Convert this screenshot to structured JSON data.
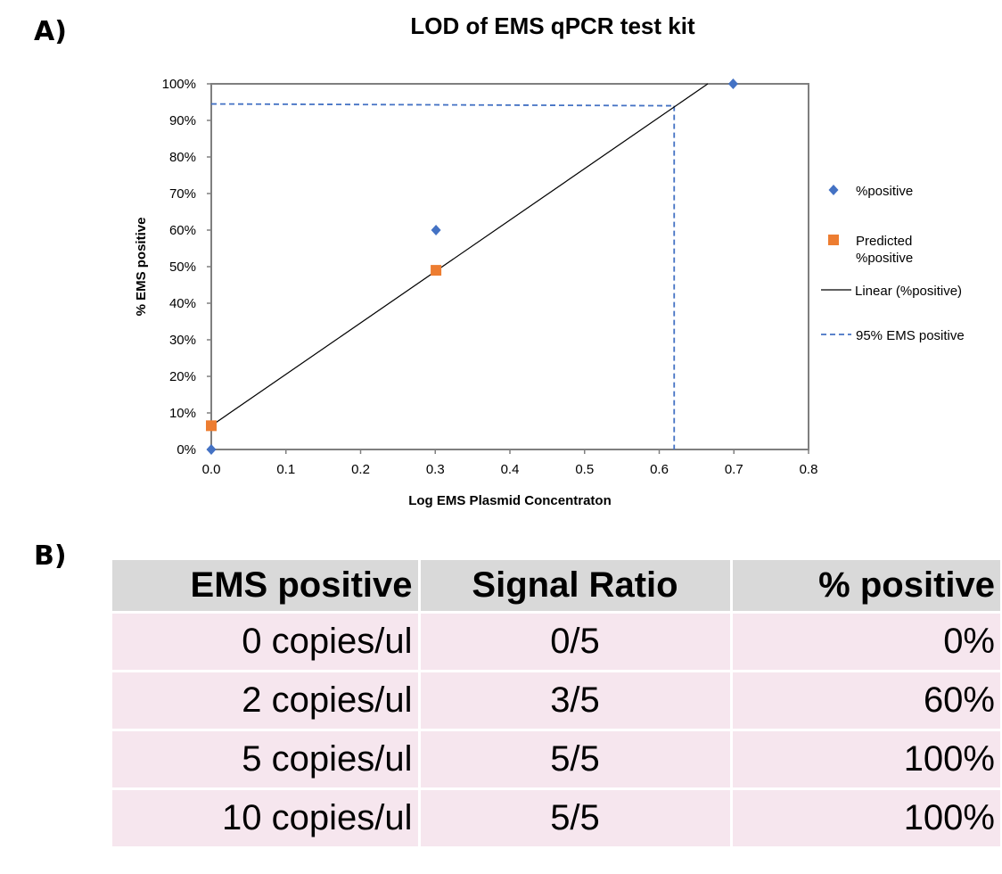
{
  "panels": {
    "a_label": "A)",
    "b_label": "B)"
  },
  "colors": {
    "positive": "#4472c4",
    "predicted": "#ed7d31",
    "linear": "#000000",
    "threshold": "#4472c4",
    "table_header_bg": "#d9d9d9",
    "table_row_bg": "#f6e6ee"
  },
  "chart_data": {
    "type": "scatter",
    "title": "LOD of EMS qPCR test kit",
    "xlabel": "Log EMS Plasmid Concentraton",
    "ylabel": "% EMS positive",
    "xlim": [
      0,
      0.8
    ],
    "ylim": [
      0,
      1
    ],
    "x_ticks": [
      "0.0",
      "0.1",
      "0.2",
      "0.3",
      "0.4",
      "0.5",
      "0.6",
      "0.7",
      "0.8"
    ],
    "x_tick_values": [
      0,
      0.1,
      0.2,
      0.3,
      0.4,
      0.5,
      0.6,
      0.7,
      0.8
    ],
    "y_ticks": [
      "0%",
      "10%",
      "20%",
      "30%",
      "40%",
      "50%",
      "60%",
      "70%",
      "80%",
      "90%",
      "100%"
    ],
    "y_tick_values": [
      0,
      0.1,
      0.2,
      0.3,
      0.4,
      0.5,
      0.6,
      0.7,
      0.8,
      0.9,
      1.0
    ],
    "grid": false,
    "legend_position": "right",
    "series": [
      {
        "name": "%positive",
        "marker": "diamond",
        "x": [
          0,
          0.301,
          0.699
        ],
        "y": [
          0,
          0.6,
          1.0
        ]
      },
      {
        "name": "Predicted %positive",
        "marker": "square",
        "x": [
          0,
          0.301
        ],
        "y": [
          0.065,
          0.49
        ]
      },
      {
        "name": "Linear (%positive)",
        "style": "line",
        "x": [
          0,
          0.665
        ],
        "y": [
          0.065,
          1.0
        ]
      },
      {
        "name": "95% EMS positive",
        "style": "dashed",
        "horizontal": {
          "x": [
            0,
            0.62
          ],
          "y": [
            0.945,
            0.94
          ]
        },
        "vertical": {
          "x": [
            0.62,
            0.62
          ],
          "y": [
            0.94,
            0
          ]
        }
      }
    ],
    "legend": [
      {
        "label": "%positive",
        "symbol": "diamond",
        "series_index": 0
      },
      {
        "label": "Predicted\n%positive",
        "symbol": "square",
        "series_index": 1
      },
      {
        "label": "Linear (%positive)",
        "symbol": "line",
        "series_index": 2
      },
      {
        "label": "95% EMS positive",
        "symbol": "dashed",
        "series_index": 3
      }
    ]
  },
  "table": {
    "headers": [
      "EMS positive",
      "Signal Ratio",
      "% positive"
    ],
    "rows": [
      [
        "0 copies/ul",
        "0/5",
        "0%"
      ],
      [
        "2 copies/ul",
        "3/5",
        "60%"
      ],
      [
        "5 copies/ul",
        "5/5",
        "100%"
      ],
      [
        "10 copies/ul",
        "5/5",
        "100%"
      ]
    ]
  }
}
